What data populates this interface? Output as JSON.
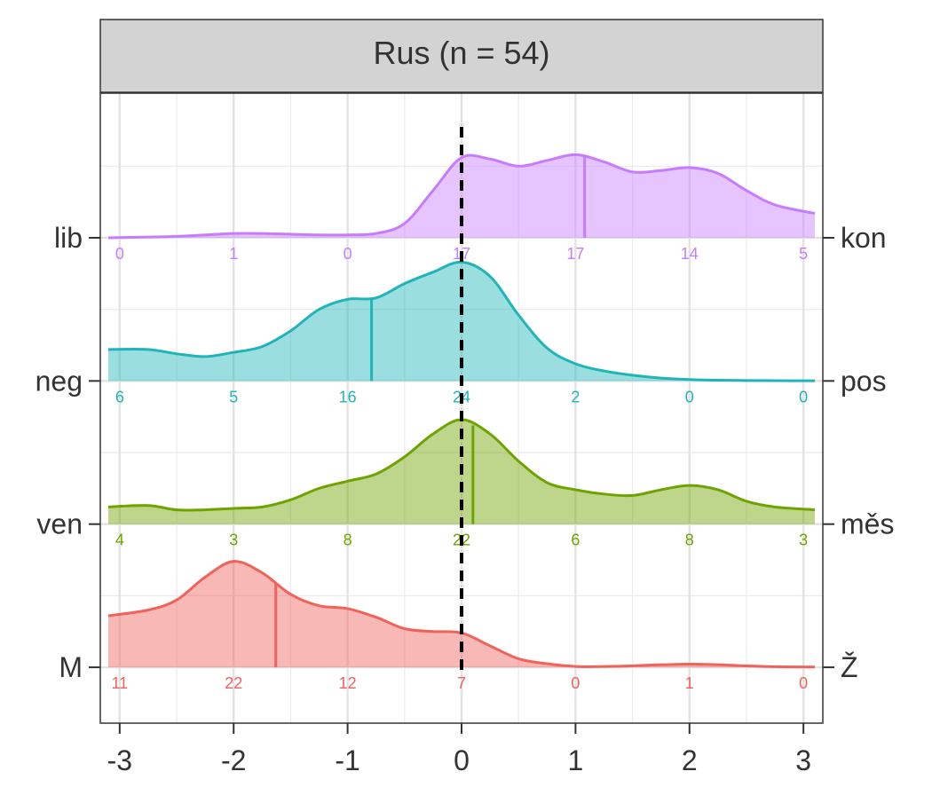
{
  "chart_data": {
    "type": "ridgeline",
    "title": "Rus (n = 54)",
    "xlim": [
      -3.17,
      3.17
    ],
    "xticks": [
      -3,
      -2,
      -1,
      0,
      1,
      2,
      3
    ],
    "ylim": [
      0.61,
      5.01
    ],
    "yticks": [
      {
        "value": 4,
        "label": "lib"
      },
      {
        "value": 3,
        "label": "neg"
      },
      {
        "value": 2,
        "label": "ven"
      },
      {
        "value": 1,
        "label": "M"
      }
    ],
    "y2ticks": [
      {
        "value": 4,
        "label": "kon"
      },
      {
        "value": 3,
        "label": "pos"
      },
      {
        "value": 2,
        "label": "měs"
      },
      {
        "value": 1,
        "label": "Ž"
      }
    ],
    "grid": true,
    "reference_x": 0,
    "x": [
      -3.1,
      -2.75,
      -2.5,
      -2.25,
      -2,
      -1.75,
      -1.5,
      -1.25,
      -1,
      -0.75,
      -0.5,
      -0.25,
      0,
      0.25,
      0.5,
      0.75,
      1,
      1.25,
      1.5,
      1.75,
      2,
      2.25,
      2.5,
      2.75,
      3.1
    ],
    "series": [
      {
        "color": "#c77cff",
        "median": 1.08,
        "counts": [
          0,
          1,
          0,
          17,
          17,
          14,
          5
        ],
        "values": [
          0,
          0.005,
          0.01,
          0.02,
          0.03,
          0.03,
          0.025,
          0.02,
          0.02,
          0.03,
          0.1,
          0.33,
          0.56,
          0.55,
          0.5,
          0.54,
          0.58,
          0.53,
          0.46,
          0.47,
          0.49,
          0.45,
          0.33,
          0.23,
          0.17
        ]
      },
      {
        "color": "#1fb5b8",
        "median": -0.79,
        "counts": [
          6,
          5,
          16,
          24,
          2,
          0,
          0
        ],
        "values": [
          0.22,
          0.22,
          0.19,
          0.17,
          0.2,
          0.24,
          0.35,
          0.5,
          0.57,
          0.58,
          0.68,
          0.76,
          0.83,
          0.73,
          0.46,
          0.23,
          0.12,
          0.07,
          0.04,
          0.02,
          0.01,
          0.005,
          0.003,
          0.002,
          0.001
        ]
      },
      {
        "color": "#6fa300",
        "median": 0.1,
        "counts": [
          4,
          3,
          8,
          22,
          6,
          8,
          3
        ],
        "values": [
          0.12,
          0.13,
          0.1,
          0.1,
          0.11,
          0.12,
          0.17,
          0.25,
          0.3,
          0.35,
          0.47,
          0.63,
          0.73,
          0.63,
          0.44,
          0.29,
          0.24,
          0.21,
          0.2,
          0.24,
          0.27,
          0.24,
          0.16,
          0.12,
          0.1
        ]
      },
      {
        "color": "#f0625a",
        "median": -1.63,
        "counts": [
          11,
          22,
          12,
          7,
          0,
          1,
          0
        ],
        "values": [
          0.36,
          0.4,
          0.47,
          0.63,
          0.74,
          0.66,
          0.51,
          0.43,
          0.41,
          0.35,
          0.27,
          0.25,
          0.24,
          0.15,
          0.06,
          0.025,
          0.006,
          0.006,
          0.01,
          0.018,
          0.022,
          0.018,
          0.01,
          0.004,
          0.002
        ]
      }
    ]
  }
}
